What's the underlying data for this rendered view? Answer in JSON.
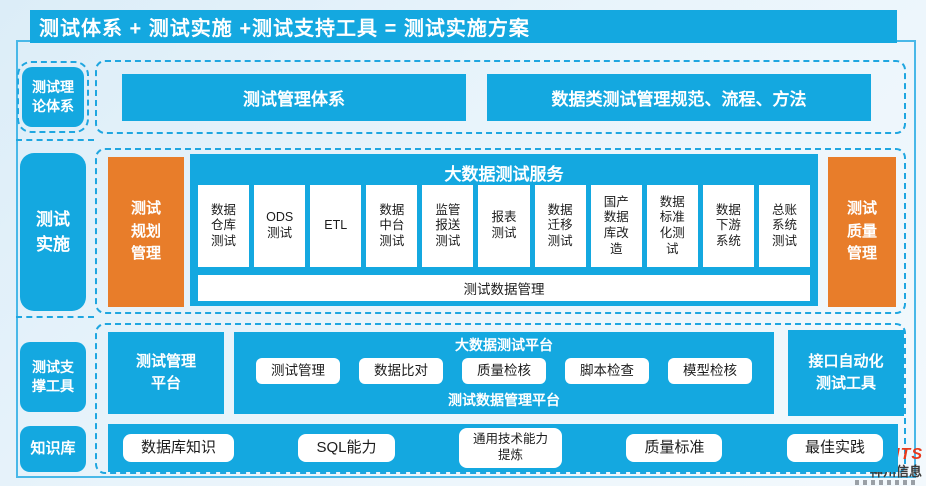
{
  "header": {
    "title": "测试体系 + 测试实施 +测试支持工具 = 测试实施方案"
  },
  "colors": {
    "cyan": "#14a8e0",
    "orange": "#e87d2a",
    "dashed_border": "#1fa6e0",
    "frame": "#49b8e8",
    "background": "#e9f4fb",
    "cell_text": "#1c1c1c",
    "logo_red": "#e8391b"
  },
  "sidebar": {
    "labels": [
      "测试理论体系",
      "测试实施",
      "测试支撑工具",
      "知识库"
    ]
  },
  "theory_row": {
    "boxes": [
      "测试管理体系",
      "数据类测试管理规范、流程、方法"
    ]
  },
  "impl_row": {
    "left_box": "测试规划管理",
    "service": {
      "title": "大数据测试服务",
      "cells": [
        "数据仓库测试",
        "ODS测试",
        "ETL",
        "数据中台测试",
        "监管报送测试",
        "报表测试",
        "数据迁移测试",
        "国产数据库改造",
        "数据标准化测试",
        "数据下游系统",
        "总账系统测试"
      ],
      "footer": "测试数据管理"
    },
    "right_box": "测试质量管理"
  },
  "tools_row": {
    "left_box": "测试管理平台",
    "platform": {
      "title": "大数据测试平台",
      "buttons": [
        "测试管理",
        "数据比对",
        "质量检核",
        "脚本检查",
        "模型检核"
      ],
      "footer": "测试数据管理平台"
    },
    "right_box": "接口自动化测试工具"
  },
  "kb_row": {
    "buttons": [
      "数据库知识",
      "SQL能力",
      "通用技术能力\n提炼",
      "质量标准",
      "最佳实践"
    ]
  },
  "logo": {
    "en": "DCITS",
    "cn": "神州信息"
  }
}
